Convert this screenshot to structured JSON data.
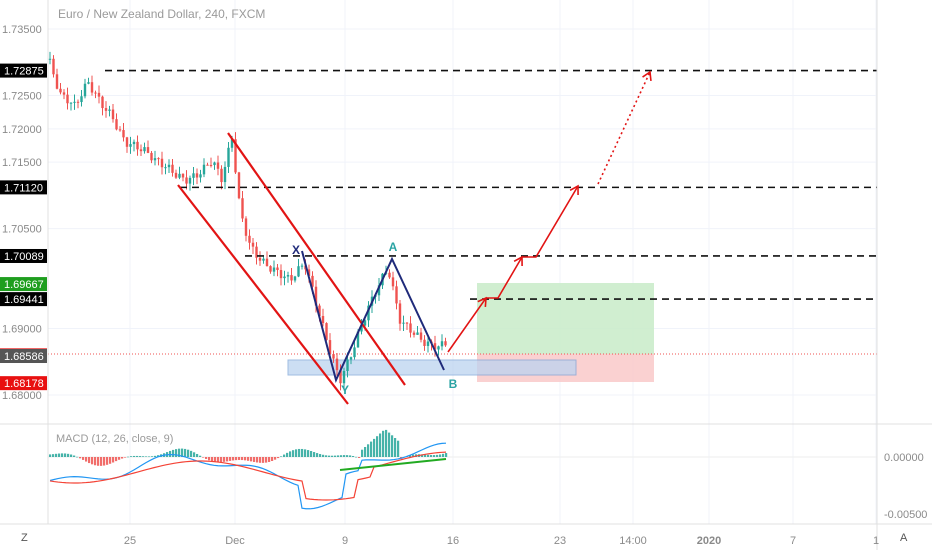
{
  "header": {
    "title": "Euro / New Zealand Dollar, 240, FXCM"
  },
  "macd": {
    "label": "MACD (12, 26, close, 9)",
    "ticks": [
      "0.00000",
      "-0.00500"
    ],
    "histogram_points": 40
  },
  "corners": {
    "left": "Z",
    "right": "A"
  },
  "colors": {
    "bull": "#26a69a",
    "bear": "#ef5350",
    "channel": "#e21414",
    "pattern": "#1f2a7a",
    "zone": "#bcd3f0",
    "profit": "#c8ebc8",
    "loss": "#f9c9c9",
    "macd_line": "#2196f3",
    "signal_line": "#f44336",
    "divergence": "#22aa22"
  },
  "chart_data": {
    "type": "candlestick",
    "title": "Euro / New Zealand Dollar, 240, FXCM",
    "y_ticks": [
      "1.73500",
      "1.72500",
      "1.72000",
      "1.71500",
      "1.70500",
      "1.69000",
      "1.68000"
    ],
    "ylim": [
      1.6775,
      1.7358
    ],
    "x_ticks": [
      "25",
      "Dec",
      "9",
      "16",
      "23",
      "14:00",
      "2020",
      "7",
      "1"
    ],
    "price_levels": [
      {
        "label": "1.72875",
        "value": 1.72875,
        "style": "dashed",
        "bg": "#000000"
      },
      {
        "label": "1.71120",
        "value": 1.7112,
        "style": "dashed",
        "bg": "#000000"
      },
      {
        "label": "1.70089",
        "value": 1.70089,
        "style": "dashed",
        "bg": "#000000"
      },
      {
        "label": "1.69667",
        "value": 1.69667,
        "style": "marker",
        "bg": "#1e9e1e"
      },
      {
        "label": "1.69441",
        "value": 1.69441,
        "style": "dashed",
        "bg": "#000000"
      },
      {
        "label": "1.68600",
        "value": 1.686,
        "style": "dotted",
        "bg": "#ef5a5a"
      },
      {
        "label": "1.68586",
        "value": 1.68586,
        "style": "marker",
        "bg": "#555555"
      },
      {
        "label": "1.68178",
        "value": 1.68178,
        "style": "marker",
        "bg": "#e81010"
      }
    ],
    "pattern_labels": [
      "X",
      "A",
      "Y",
      "B"
    ]
  }
}
